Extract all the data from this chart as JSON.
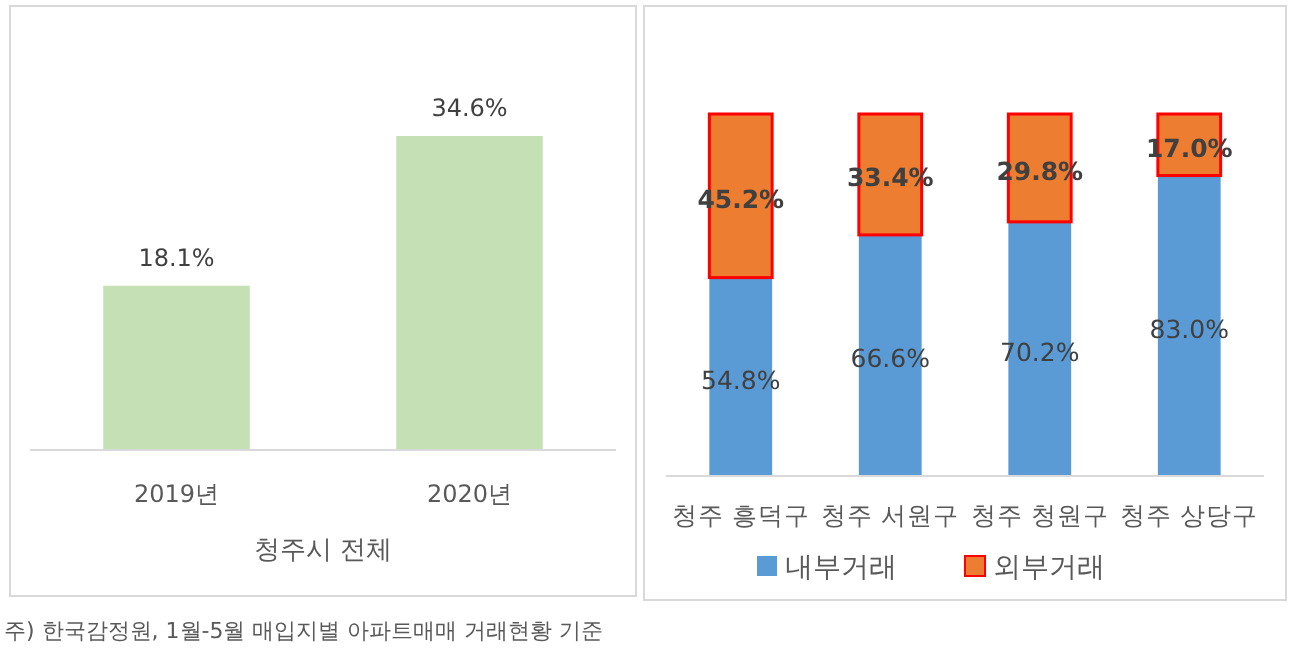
{
  "chart_data": [
    {
      "type": "bar",
      "categories": [
        "2019년",
        "2020년"
      ],
      "values": [
        18.1,
        34.6
      ],
      "value_labels": [
        "18.1%",
        "34.6%"
      ],
      "color": "#c5e0b4",
      "xlabel": "청주시 전체",
      "annotations": [
        "주) 한국감정원, 1월-5월 매입지별 아파트매매 거래현황 기준"
      ]
    },
    {
      "type": "bar",
      "stacked": true,
      "categories": [
        "청주 흥덕구",
        "청주 서원구",
        "청주 청원구",
        "청주 상당구"
      ],
      "series": [
        {
          "name": "내부거래",
          "color": "#5b9bd5",
          "values": [
            54.8,
            66.6,
            70.2,
            83.0
          ],
          "value_labels": [
            "54.8%",
            "66.6%",
            "70.2%",
            "83.0%"
          ]
        },
        {
          "name": "외부거래",
          "color": "#ed7d31",
          "values": [
            45.2,
            33.4,
            29.8,
            17.0
          ],
          "value_labels": [
            "45.2%",
            "33.4%",
            "29.8%",
            "17.0%"
          ]
        }
      ],
      "legend": "bottom"
    }
  ]
}
